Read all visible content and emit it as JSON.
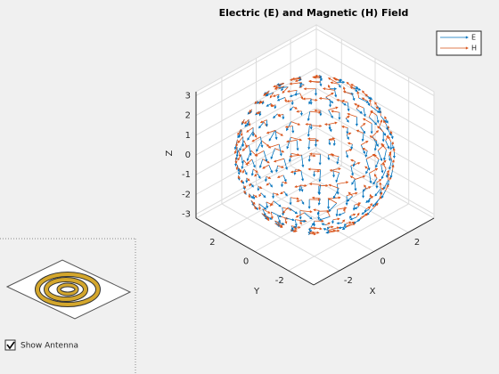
{
  "chart_data": {
    "type": "quiver3",
    "title": "Electric (E) and Magnetic (H) Field",
    "xlabel": "X",
    "ylabel": "Y",
    "zlabel": "Z",
    "xlim": [
      -3.5,
      3.5
    ],
    "ylim": [
      -3.5,
      3.5
    ],
    "zlim": [
      -3.2,
      3.2
    ],
    "xticks": [
      -2,
      0,
      2
    ],
    "yticks": [
      -2,
      0,
      2
    ],
    "zticks": [
      -3,
      -2,
      -1,
      0,
      1,
      2,
      3
    ],
    "series": [
      {
        "name": "E",
        "color": "#0072bd"
      },
      {
        "name": "H",
        "color": "#d95319"
      }
    ],
    "grid": true,
    "legend": "northeast"
  },
  "controls": {
    "checkbox": {
      "label": "Show Antenna",
      "checked": true
    }
  }
}
